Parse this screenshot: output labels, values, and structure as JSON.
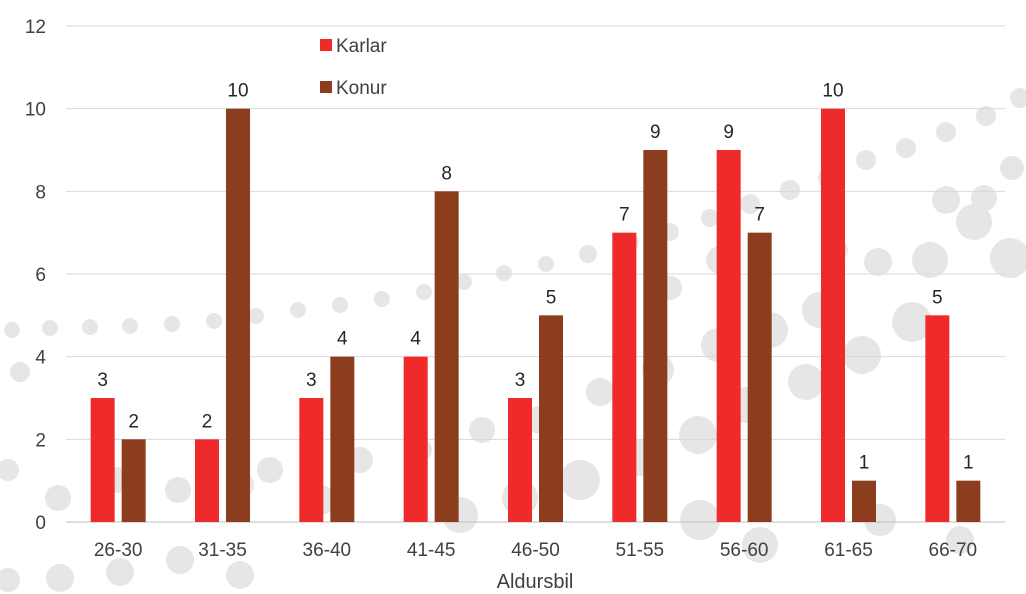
{
  "chart_data": {
    "type": "bar",
    "categories": [
      "26-30",
      "31-35",
      "36-40",
      "41-45",
      "46-50",
      "51-55",
      "56-60",
      "61-65",
      "66-70"
    ],
    "series": [
      {
        "name": "Karlar",
        "color": "#ee2a2a",
        "values": [
          3,
          2,
          3,
          4,
          3,
          7,
          9,
          10,
          5
        ]
      },
      {
        "name": "Konur",
        "color": "#8b3d1d",
        "values": [
          2,
          10,
          4,
          8,
          5,
          9,
          7,
          1,
          1
        ]
      }
    ],
    "xlabel": "Aldursbil",
    "ylabel": "",
    "ylim": [
      0,
      12
    ],
    "yticks": [
      0,
      2,
      4,
      6,
      8,
      10,
      12
    ],
    "grid": true,
    "legend": "top-center",
    "data_labels": true,
    "background_decoration": "grey-dots"
  }
}
